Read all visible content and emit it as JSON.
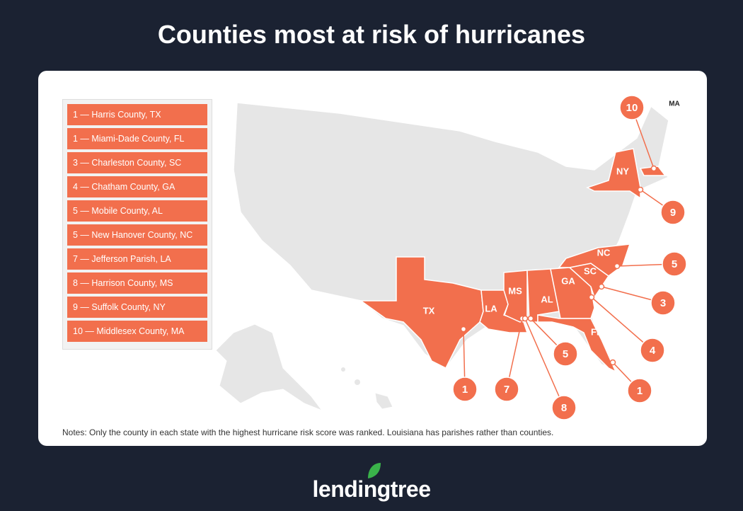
{
  "title": "Counties most at risk of hurricanes",
  "legend": [
    "1 — Harris County, TX",
    "1 — Miami-Dade County, FL",
    "3 — Charleston County, SC",
    "4 — Chatham County, GA",
    "5 — Mobile County, AL",
    "5 — New Hanover County, NC",
    "7 — Jefferson Parish, LA",
    "8 — Harrison County, MS",
    "9 — Suffolk County, NY",
    "10 — Middlesex County, MA"
  ],
  "states": [
    "TX",
    "LA",
    "MS",
    "AL",
    "GA",
    "SC",
    "NC",
    "FL",
    "NY",
    "MA"
  ],
  "markers": [
    1,
    7,
    8,
    5,
    4,
    3,
    5,
    1,
    9,
    10
  ],
  "notes": "Notes: Only the county in each state with the highest hurricane risk score was ranked. Louisiana has parishes rather than counties.",
  "brand": "lendingtree"
}
